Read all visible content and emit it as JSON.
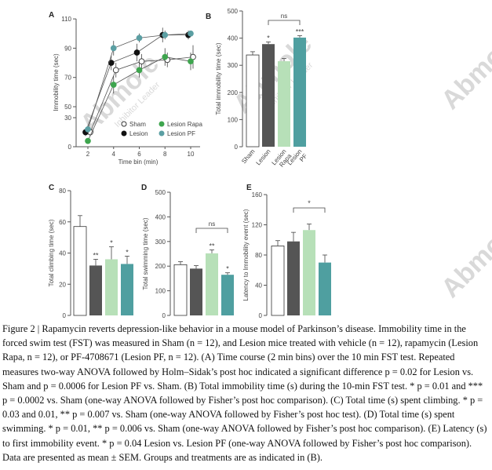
{
  "watermark": {
    "brand": "Abmole",
    "tagline": "Inhibitor Leader"
  },
  "caption": "Figure 2 | Rapamycin reverts depression-like behavior in a mouse model of Parkinson’s disease. Immobility time in the forced swim test (FST) was measured in Sham (n = 12), and Lesion mice treated with vehicle (n = 12), rapamycin (Lesion Rapa, n = 12), or PF-4708671 (Lesion PF, n = 12). (A) Time course (2 min bins) over the 10 min FST test. Repeated measures two-way ANOVA followed by Holm–Sidak’s post hoc indicated a significant difference p = 0.02 for Lesion vs. Sham and p = 0.0006 for Lesion PF vs. Sham. (B) Total immobility time (s) during the 10-min FST test. * p = 0.01 and *** p = 0.0002 vs. Sham (one-way ANOVA followed by Fisher’s post hoc comparison). (C) Total time (s) spent climbing. * p = 0.03 and 0.01, ** p = 0.007 vs. Sham (one-way ANOVA followed by Fisher’s post hoc test). (D) Total time (s) spent swimming. * p = 0.01, ** p = 0.006 vs. Sham (one-way ANOVA followed by Fisher’s post hoc comparison). (E) Latency (s) to first immobility event. * p = 0.04 Lesion vs. Lesion PF (one-way ANOVA followed by Fisher’s post hoc comparison). Data are presented as mean ± SEM. Groups and treatments are as indicated in (B).",
  "colors": {
    "sham": "#ffffff",
    "lesion": "#555555",
    "rapa": "#b7e0b8",
    "pf": "#4f9fa0",
    "rapa_dot": "#3ea54e",
    "pf_dot": "#5b9fa3"
  },
  "chart_data": [
    {
      "panel": "A",
      "type": "line",
      "xlabel": "Time bin (min)",
      "ylabel": "Immobility time (sec)",
      "x": [
        2,
        4,
        6,
        8,
        10
      ],
      "xticks": [
        "2",
        "4",
        "6",
        "8",
        "10"
      ],
      "yticks": [
        "0",
        "30",
        "50",
        "70",
        "90",
        "110"
      ],
      "ylim": [
        0,
        110
      ],
      "legend": "bottom-right",
      "series": [
        {
          "name": "Sham",
          "values": [
            15,
            75,
            81,
            82,
            84
          ],
          "sem": [
            4,
            5,
            5,
            5,
            8
          ]
        },
        {
          "name": "Lesion",
          "values": [
            15,
            80,
            87,
            99,
            99
          ],
          "sem": [
            4,
            5,
            6,
            5,
            3
          ]
        },
        {
          "name": "Lesion Rapa",
          "values": [
            6,
            65,
            75,
            84,
            81
          ],
          "sem": [
            3,
            6,
            5,
            6,
            6
          ]
        },
        {
          "name": "Lesion PF",
          "values": [
            18,
            90,
            97,
            99,
            100
          ],
          "sem": [
            4,
            5,
            3,
            3,
            2
          ]
        }
      ]
    },
    {
      "panel": "B",
      "type": "bar",
      "ylabel": "Total immobility time (sec)",
      "categories": [
        "Sham",
        "Lesion",
        "Lesion Rapa",
        "Lesion PF"
      ],
      "values": [
        338,
        378,
        315,
        402
      ],
      "sem": [
        12,
        8,
        10,
        7
      ],
      "stars": [
        "",
        "*",
        "",
        "***"
      ],
      "ylim": [
        0,
        500
      ],
      "yticks": [
        "0",
        "100",
        "200",
        "300",
        "400",
        "500"
      ],
      "bracket": {
        "from": 1,
        "to": 3,
        "label": "ns"
      }
    },
    {
      "panel": "C",
      "type": "bar",
      "ylabel": "Total climbing time (sec)",
      "categories": [
        "Sham",
        "Lesion",
        "Lesion Rapa",
        "Lesion PF"
      ],
      "values": [
        57,
        32,
        36,
        33
      ],
      "sem": [
        7,
        4,
        8,
        5
      ],
      "stars": [
        "",
        "**",
        "*",
        "*"
      ],
      "ylim": [
        0,
        80
      ],
      "yticks": [
        "0",
        "20",
        "40",
        "60",
        "80"
      ]
    },
    {
      "panel": "D",
      "type": "bar",
      "ylabel": "Total swimming time (sec)",
      "categories": [
        "Sham",
        "Lesion",
        "Lesion Rapa",
        "Lesion PF"
      ],
      "values": [
        206,
        190,
        252,
        165
      ],
      "sem": [
        12,
        12,
        14,
        8
      ],
      "stars": [
        "",
        "",
        "**",
        "*"
      ],
      "ylim": [
        0,
        500
      ],
      "yticks": [
        "0",
        "100",
        "200",
        "300",
        "400",
        "500"
      ],
      "bracket": {
        "from": 1,
        "to": 3,
        "label": "ns"
      }
    },
    {
      "panel": "E",
      "type": "bar",
      "ylabel": "Latency to Immobility event (sec)",
      "categories": [
        "Sham",
        "Lesion",
        "Lesion Rapa",
        "Lesion PF"
      ],
      "values": [
        92,
        98,
        113,
        70
      ],
      "sem": [
        7,
        12,
        8,
        10
      ],
      "stars": [
        "",
        "",
        "",
        ""
      ],
      "ylim": [
        0,
        160
      ],
      "yticks": [
        "0",
        "40",
        "80",
        "120",
        "160"
      ],
      "bracket": {
        "from": 1,
        "to": 3,
        "label": "*"
      }
    }
  ]
}
